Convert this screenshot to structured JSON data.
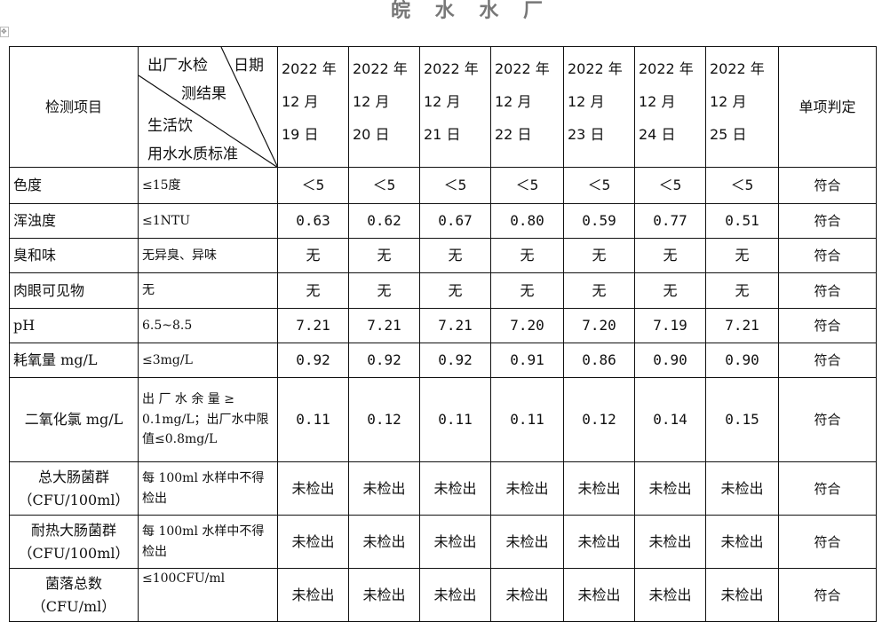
{
  "title": "皖 水 水 厂",
  "header": {
    "item_label": "检测项目",
    "diag_top_left": "出厂水检",
    "diag_top_right": "日期",
    "diag_mid": "测结果",
    "diag_bottom1": "生活饮",
    "diag_bottom2": "用水水质标准",
    "dates": [
      [
        "2022 年",
        "12 月",
        "19 日"
      ],
      [
        "2022 年",
        "12 月",
        "20 日"
      ],
      [
        "2022 年",
        "12 月",
        "21 日"
      ],
      [
        "2022 年",
        "12 月",
        "22 日"
      ],
      [
        "2022 年",
        "12 月",
        "23 日"
      ],
      [
        "2022 年",
        "12 月",
        "24 日"
      ],
      [
        "2022 年",
        "12 月",
        "25 日"
      ]
    ],
    "verdict_label": "单项判定"
  },
  "rows": [
    {
      "item": "色度",
      "standard": "≤15度",
      "values": [
        "＜5",
        "＜5",
        "＜5",
        "＜5",
        "＜5",
        "＜5",
        "＜5"
      ],
      "verdict": "符合"
    },
    {
      "item": "浑浊度",
      "standard": "≤1NTU",
      "values": [
        "0.63",
        "0.62",
        "0.67",
        "0.80",
        "0.59",
        "0.77",
        "0.51"
      ],
      "verdict": "符合"
    },
    {
      "item": "臭和味",
      "standard": "无异臭、异味",
      "values": [
        "无",
        "无",
        "无",
        "无",
        "无",
        "无",
        "无"
      ],
      "verdict": "符合"
    },
    {
      "item": "肉眼可见物",
      "standard": "无",
      "values": [
        "无",
        "无",
        "无",
        "无",
        "无",
        "无",
        "无"
      ],
      "verdict": "符合"
    },
    {
      "item": "pH",
      "standard": "6.5~8.5",
      "values": [
        "7.21",
        "7.21",
        "7.21",
        "7.20",
        "7.20",
        "7.19",
        "7.21"
      ],
      "verdict": "符合"
    },
    {
      "item": "耗氧量 mg/L",
      "standard": "≤3mg/L",
      "values": [
        "0.92",
        "0.92",
        "0.92",
        "0.91",
        "0.86",
        "0.90",
        "0.90"
      ],
      "verdict": "符合"
    },
    {
      "item": "二氧化氯 mg/L",
      "standard": "出 厂 水 余 量 ≥ 0.1mg/L；出厂水中限值≤0.8mg/L",
      "values": [
        "0.11",
        "0.12",
        "0.11",
        "0.11",
        "0.12",
        "0.14",
        "0.15"
      ],
      "verdict": "符合"
    },
    {
      "item": "总大肠菌群（CFU/100ml）",
      "standard": "每 100ml 水样中不得检出",
      "values": [
        "未检出",
        "未检出",
        "未检出",
        "未检出",
        "未检出",
        "未检出",
        "未检出"
      ],
      "verdict": "符合"
    },
    {
      "item": "耐热大肠菌群（CFU/100ml）",
      "standard": "每 100ml 水样中不得检出",
      "values": [
        "未检出",
        "未检出",
        "未检出",
        "未检出",
        "未检出",
        "未检出",
        "未检出"
      ],
      "verdict": "符合"
    },
    {
      "item": "菌落总数（CFU/ml）",
      "standard": "≤100CFU/ml",
      "values": [
        "未检出",
        "未检出",
        "未检出",
        "未检出",
        "未检出",
        "未检出",
        "未检出"
      ],
      "verdict": "符合"
    }
  ]
}
